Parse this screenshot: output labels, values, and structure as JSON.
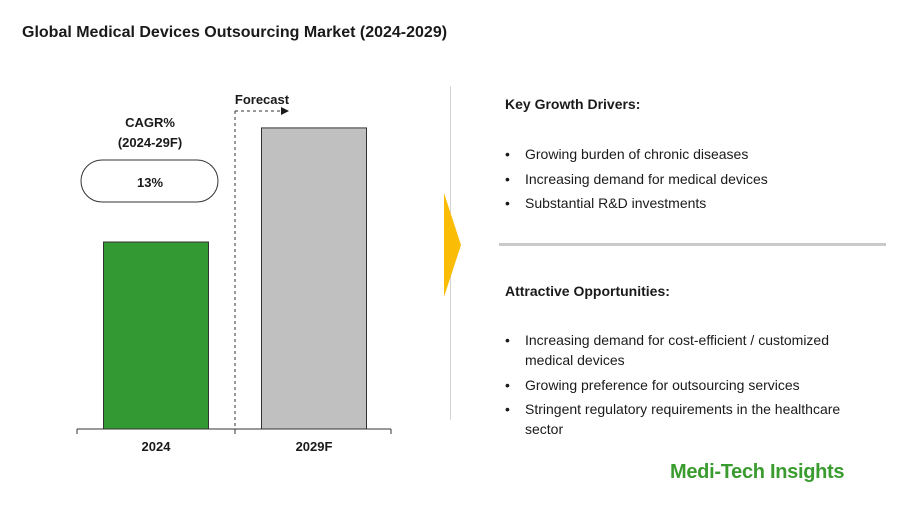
{
  "title": "Global Medical Devices Outsourcing Market (2024-2029)",
  "chart_data": {
    "type": "bar",
    "categories": [
      "2024",
      "2029F"
    ],
    "values": [
      1.0,
      1.61
    ],
    "value_note": "relative bar heights; no numeric values shown",
    "colors": [
      "#339933",
      "#c0c0c0"
    ],
    "forecast_label": "Forecast",
    "cagr_label_line1": "CAGR%",
    "cagr_label_line2": "(2024-29F)",
    "cagr_value": "13%"
  },
  "growth_drivers": {
    "title": "Key Growth Drivers:",
    "items": [
      "Growing burden of chronic diseases",
      "Increasing demand for medical devices",
      "Substantial R&D investments"
    ]
  },
  "opportunities": {
    "title": "Attractive Opportunities:",
    "items": [
      "Increasing demand for cost-efficient / customized medical devices",
      "Growing preference for outsourcing services",
      "Stringent regulatory requirements in the healthcare sector"
    ]
  },
  "bullet_char": "•",
  "brand": "Medi-Tech Insights",
  "accent_color": "#fbbc05",
  "brand_color": "#3a9b2e"
}
